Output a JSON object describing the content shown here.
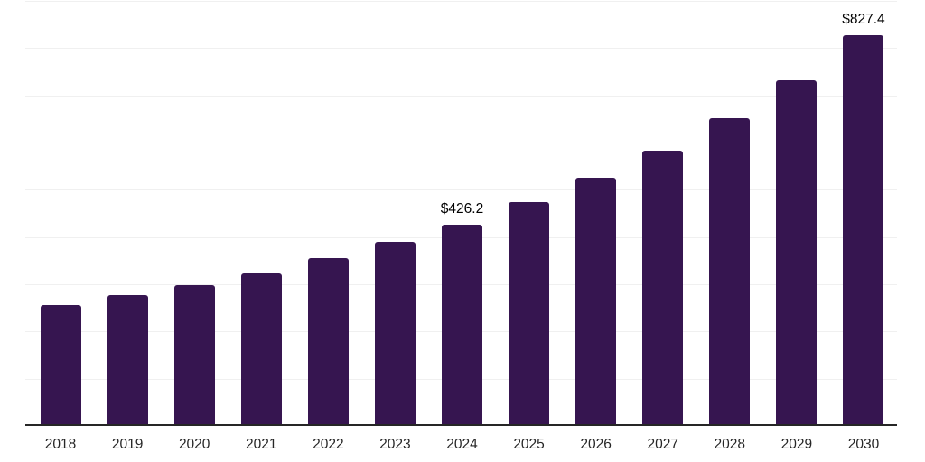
{
  "chart_data": {
    "type": "bar",
    "title": "",
    "xlabel": "",
    "ylabel": "",
    "categories": [
      "2018",
      "2019",
      "2020",
      "2021",
      "2022",
      "2023",
      "2024",
      "2025",
      "2026",
      "2027",
      "2028",
      "2029",
      "2030"
    ],
    "values": [
      257.0,
      277.5,
      298.0,
      323.5,
      354.5,
      390.0,
      426.2,
      474.0,
      525.0,
      582.0,
      652.0,
      731.5,
      827.4
    ],
    "labeled_points": [
      {
        "category": "2024",
        "label": "$426.2"
      },
      {
        "category": "2030",
        "label": "$827.4"
      }
    ],
    "value_prefix": "$",
    "ylim": [
      0,
      900
    ],
    "gridline_step": 100,
    "grid": "horizontal-only",
    "legend": "none",
    "y_axis_labels_visible": false,
    "colors": {
      "bar": "#361550",
      "gridline": "#f0f0f0",
      "axis": "#262626",
      "value_label_text": "#000000",
      "tick_text": "#262626",
      "background": "#ffffff"
    }
  }
}
